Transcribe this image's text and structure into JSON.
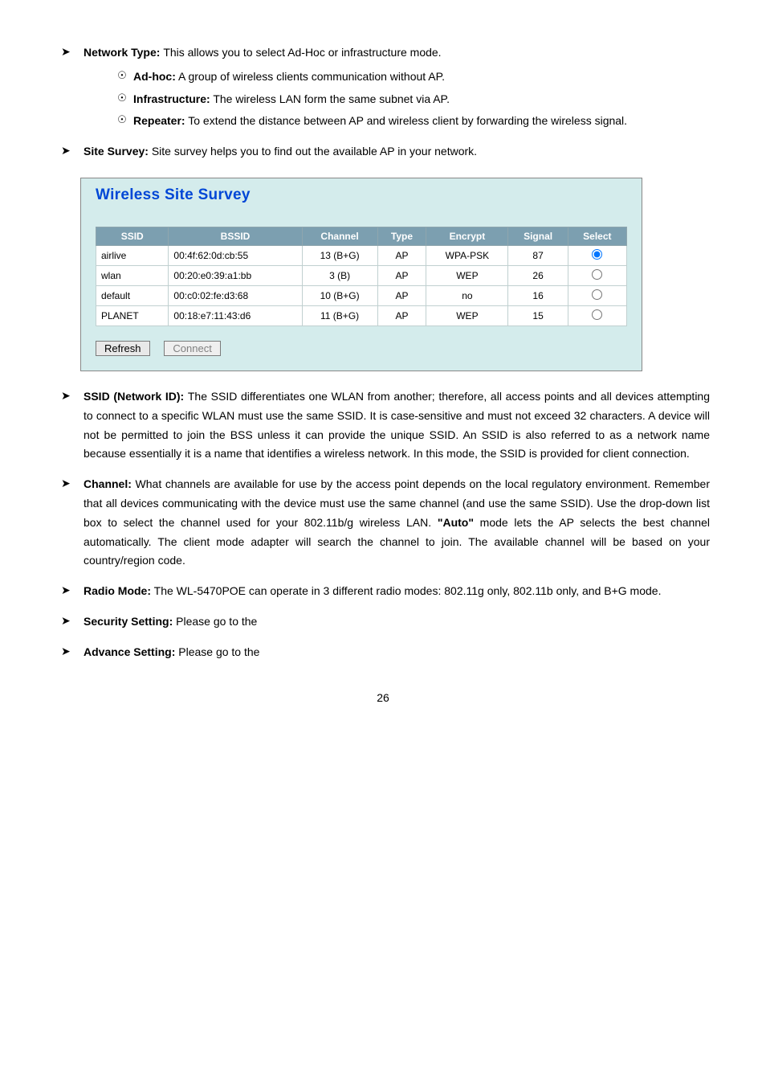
{
  "page_number": "26",
  "items": {
    "network_type": {
      "label": "Network Type: ",
      "desc": "This allows you to select Ad-Hoc or infrastructure mode.",
      "subs": [
        {
          "label": "Ad-hoc:",
          "text": " A group of wireless clients communication without AP."
        },
        {
          "label": "Infrastructure:",
          "text": " The wireless LAN form the same subnet via AP."
        },
        {
          "label": "Repeater:",
          "text": " To extend the distance between AP and wireless client by forwarding the wireless signal."
        }
      ]
    },
    "site_survey": {
      "label": "Site Survey: ",
      "desc": "Site survey helps you to find out the available AP in your network."
    },
    "ssid": {
      "label": "SSID (Network ID): ",
      "desc": "The SSID differentiates one WLAN from another; therefore, all access points and all devices attempting to connect to a specific WLAN must use the same SSID. It is case-sensitive and must not exceed 32 characters. A device will not be permitted to join the BSS unless it can provide the unique SSID. An SSID is also referred to as a network name because essentially it is a name that identifies a wireless network. In this mode, the SSID is provided for client connection."
    },
    "channel": {
      "label": "Channel: ",
      "desc_before": "What channels are available for use by the access point depends on the local regulatory environment. Remember that all devices communicating with the device must use the same channel (and use the same SSID). Use the drop-down list box to select the channel used for your 802.11b/g wireless LAN. ",
      "auto": "\"Auto\"",
      "desc_after": " mode lets the AP selects the best channel automatically. The client mode adapter will search the channel to join. The available channel will be based on your country/region code."
    },
    "radio_mode": {
      "label": "Radio Mode:",
      "desc": " The WL-5470POE can operate in 3 different radio modes: 802.11g only, 802.11b only, and B+G mode."
    },
    "security": {
      "label": "Security Setting:",
      "desc": " Please go to the "
    },
    "advance": {
      "label": "Advance Setting:",
      "desc": " Please go to the "
    }
  },
  "survey": {
    "title": "Wireless Site Survey",
    "columns": [
      "SSID",
      "BSSID",
      "Channel",
      "Type",
      "Encrypt",
      "Signal",
      "Select"
    ],
    "rows": [
      {
        "ssid": "airlive",
        "bssid": "00:4f:62:0d:cb:55",
        "channel": "13 (B+G)",
        "type": "AP",
        "encrypt": "WPA-PSK",
        "signal": "87",
        "selected": true
      },
      {
        "ssid": "wlan",
        "bssid": "00:20:e0:39:a1:bb",
        "channel": "3 (B)",
        "type": "AP",
        "encrypt": "WEP",
        "signal": "26",
        "selected": false
      },
      {
        "ssid": "default",
        "bssid": "00:c0:02:fe:d3:68",
        "channel": "10 (B+G)",
        "type": "AP",
        "encrypt": "no",
        "signal": "16",
        "selected": false
      },
      {
        "ssid": "PLANET",
        "bssid": "00:18:e7:11:43:d6",
        "channel": "11 (B+G)",
        "type": "AP",
        "encrypt": "WEP",
        "signal": "15",
        "selected": false
      }
    ],
    "refresh_label": "Refresh",
    "connect_label": "Connect"
  },
  "colors": {
    "panel_bg": "#d4ecec",
    "title_color": "#0047d6",
    "th_bg": "#7c9fb0",
    "th_fg": "#ffffff",
    "cell_bg": "#ffffff"
  }
}
